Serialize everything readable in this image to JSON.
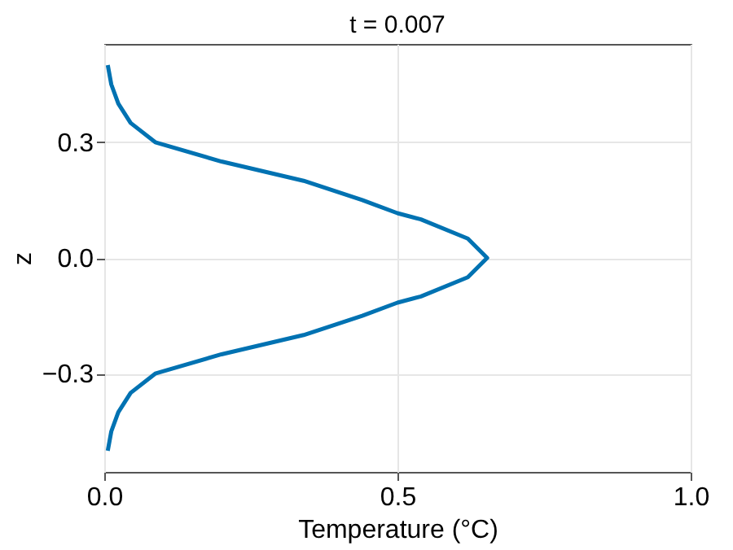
{
  "chart_data": {
    "type": "line",
    "title": "t = 0.007",
    "xlabel": "Temperature (°C)",
    "ylabel": "z",
    "series": [
      {
        "color": "#0072b2",
        "x": [
          0.006,
          0.012,
          0.024,
          0.045,
          0.087,
          0.2,
          0.34,
          0.44,
          0.5,
          0.54,
          0.62,
          0.653,
          0.62,
          0.54,
          0.5,
          0.44,
          0.34,
          0.2,
          0.087,
          0.045,
          0.024,
          0.012,
          0.006
        ],
        "values": [
          0.5,
          0.45,
          0.4,
          0.35,
          0.3,
          0.25,
          0.2,
          0.15,
          0.116,
          0.1,
          0.05,
          0.0,
          -0.05,
          -0.1,
          -0.116,
          -0.15,
          -0.2,
          -0.25,
          -0.3,
          -0.35,
          -0.4,
          -0.45,
          -0.5
        ]
      }
    ],
    "xlim": [
      0,
      1
    ],
    "xticks": [
      {
        "value": 0,
        "label": "0.0"
      },
      0.5,
      {
        "value": 1,
        "label": "1.0"
      }
    ],
    "ylim": [
      -0.555,
      0.555
    ],
    "yticks": [
      {
        "value": -0.3,
        "label": "−0.3"
      },
      {
        "value": 0,
        "label": "0.0"
      },
      0.3
    ],
    "grid": true,
    "marker": "none",
    "line_style": "solid"
  }
}
